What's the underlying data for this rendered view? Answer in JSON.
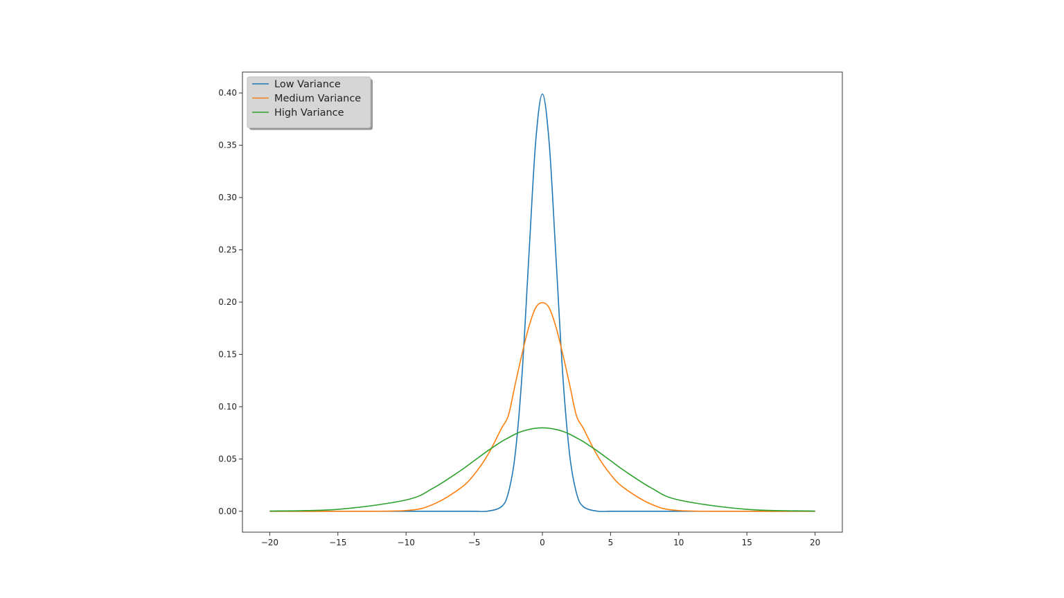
{
  "chart_data": {
    "type": "line",
    "title": "",
    "xlabel": "",
    "ylabel": "",
    "xlim": [
      -22,
      22
    ],
    "ylim": [
      -0.02,
      0.42
    ],
    "x_ticks": [
      -20,
      -15,
      -10,
      -5,
      0,
      5,
      10,
      15,
      20
    ],
    "x_tick_labels": [
      "−20",
      "−15",
      "−10",
      "−5",
      "0",
      "5",
      "10",
      "15",
      "20"
    ],
    "y_ticks": [
      0.0,
      0.05,
      0.1,
      0.15,
      0.2,
      0.25,
      0.3,
      0.35,
      0.4
    ],
    "y_tick_labels": [
      "0.00",
      "0.05",
      "0.10",
      "0.15",
      "0.20",
      "0.25",
      "0.30",
      "0.35",
      "0.40"
    ],
    "grid": false,
    "legend_position": "top-left",
    "x": [
      -20,
      -15,
      -10,
      -8,
      -6,
      -5,
      -4,
      -3,
      -2.5,
      -2,
      -1.5,
      -1,
      -0.5,
      0,
      0.5,
      1,
      1.5,
      2,
      2.5,
      3,
      4,
      5,
      6,
      8,
      10,
      15,
      20
    ],
    "series": [
      {
        "name": "Low Variance",
        "color": "#1f77b4",
        "values": [
          0,
          0,
          0,
          0,
          0,
          1.5e-06,
          0.000134,
          0.00443,
          0.0175,
          0.054,
          0.1295,
          0.242,
          0.352,
          0.399,
          0.352,
          0.242,
          0.1295,
          0.054,
          0.0175,
          0.00443,
          0.000134,
          1.5e-06,
          0,
          0,
          0,
          0,
          0
        ]
      },
      {
        "name": "Medium Variance",
        "color": "#ff7f0e",
        "values": [
          0,
          7e-07,
          0.0007,
          0.0067,
          0.0222,
          0.0352,
          0.054,
          0.0793,
          0.0913,
          0.121,
          0.15,
          0.176,
          0.1945,
          0.1995,
          0.1945,
          0.176,
          0.15,
          0.121,
          0.0913,
          0.0793,
          0.054,
          0.0352,
          0.0222,
          0.0067,
          0.0007,
          7e-07,
          0
        ]
      },
      {
        "name": "High Variance",
        "color": "#2ca02c",
        "values": [
          0.0002,
          0.0018,
          0.0108,
          0.0222,
          0.0389,
          0.0484,
          0.0579,
          0.0666,
          0.0702,
          0.0737,
          0.0764,
          0.0782,
          0.0794,
          0.0798,
          0.0794,
          0.0782,
          0.0764,
          0.0737,
          0.0702,
          0.0666,
          0.0579,
          0.0484,
          0.0389,
          0.0222,
          0.0108,
          0.0018,
          0.0002
        ]
      }
    ]
  }
}
